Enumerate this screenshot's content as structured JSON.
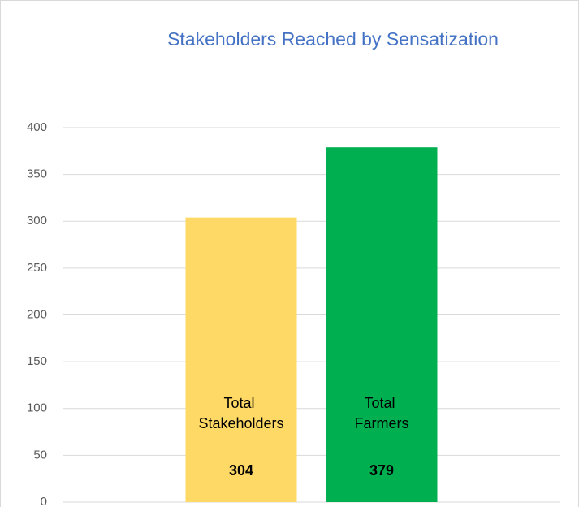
{
  "chart_data": {
    "type": "bar",
    "title": "Stakeholders Reached by Sensatization",
    "categories": [
      "Total Stakeholders",
      "Total Farmers"
    ],
    "values": [
      304,
      379
    ],
    "colors": [
      "#FFD966",
      "#00B050"
    ],
    "ylim": [
      0,
      400
    ],
    "yticks": [
      0,
      50,
      100,
      150,
      200,
      250,
      300,
      350,
      400
    ],
    "grid": true
  }
}
